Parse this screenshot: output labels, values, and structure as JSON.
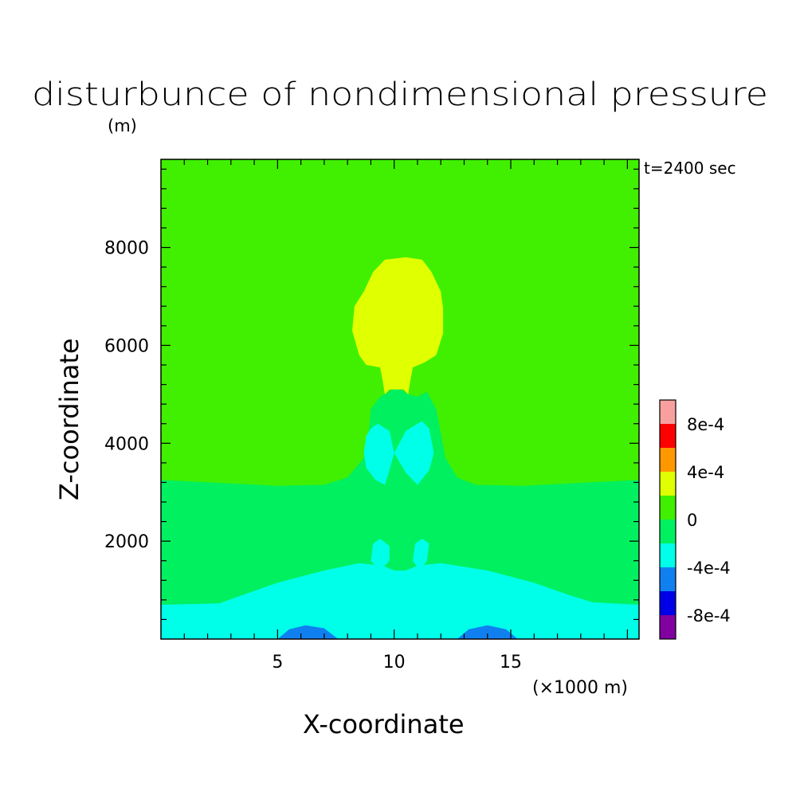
{
  "chart_data": {
    "type": "contour",
    "title": "disturbunce of nondimensional pressure",
    "unit_label": "(m)",
    "time_label": "t=2400 sec",
    "xlabel": "X-coordinate",
    "ylabel": "Z-coordinate",
    "x_unit": "(×1000 m)",
    "xlim": [
      0,
      20.5
    ],
    "ylim": [
      0,
      9800
    ],
    "xticks": [
      5,
      10,
      15
    ],
    "xtick_labels": [
      "5",
      "10",
      "15"
    ],
    "yticks": [
      2000,
      4000,
      6000,
      8000
    ],
    "ytick_labels": [
      "2000",
      "4000",
      "6000",
      "8000"
    ],
    "background_level": "0 to 2e-4",
    "levels": [
      {
        "range": [
          -0.001,
          -0.0008
        ],
        "color": "#8000a0"
      },
      {
        "range": [
          -0.0008,
          -0.0006
        ],
        "color": "#0000e8"
      },
      {
        "range": [
          -0.0006,
          -0.0004
        ],
        "color": "#1080f0"
      },
      {
        "range": [
          -0.0004,
          -0.0002
        ],
        "color": "#00ffe8"
      },
      {
        "range": [
          -0.0002,
          0
        ],
        "color": "#00f060"
      },
      {
        "range": [
          0,
          0.0002
        ],
        "color": "#40f000"
      },
      {
        "range": [
          0.0002,
          0.0004
        ],
        "color": "#e0ff00"
      },
      {
        "range": [
          0.0004,
          0.0006
        ],
        "color": "#ff9800"
      },
      {
        "range": [
          0.0006,
          0.0008
        ],
        "color": "#ff0000"
      },
      {
        "range": [
          0.0008,
          0.001
        ],
        "color": "#f8a0a0"
      }
    ],
    "colorbar_labels": [
      "-8e-4",
      "-4e-4",
      "0",
      "4e-4",
      "8e-4"
    ],
    "colorbar_label_values": [
      -0.0008,
      -0.0004,
      0,
      0.0004,
      0.0008
    ],
    "regions": [
      {
        "name": "lower-layer",
        "color": "#00f060",
        "points": [
          [
            0,
            0
          ],
          [
            0,
            3250
          ],
          [
            3,
            3180
          ],
          [
            5,
            3130
          ],
          [
            7,
            3150
          ],
          [
            8,
            3300
          ],
          [
            8.7,
            3700
          ],
          [
            8.9,
            4200
          ],
          [
            9,
            4700
          ],
          [
            9.4,
            4950
          ],
          [
            9.6,
            5000
          ],
          [
            9.9,
            5100
          ],
          [
            10.3,
            5100
          ],
          [
            10.6,
            5000
          ],
          [
            11,
            4950
          ],
          [
            11.4,
            5050
          ],
          [
            11.8,
            4700
          ],
          [
            12,
            4200
          ],
          [
            12.2,
            3700
          ],
          [
            12.7,
            3300
          ],
          [
            13.5,
            3150
          ],
          [
            15.5,
            3130
          ],
          [
            17.5,
            3180
          ],
          [
            20.5,
            3250
          ],
          [
            20.5,
            0
          ]
        ]
      },
      {
        "name": "lobe-left",
        "color": "#00ffe8",
        "points": [
          [
            8.7,
            3800
          ],
          [
            8.8,
            4150
          ],
          [
            9,
            4300
          ],
          [
            9.3,
            4400
          ],
          [
            9.8,
            4250
          ],
          [
            10,
            3800
          ],
          [
            9.8,
            3450
          ],
          [
            9.6,
            3150
          ],
          [
            9.2,
            3250
          ],
          [
            8.8,
            3500
          ]
        ]
      },
      {
        "name": "lobe-right",
        "color": "#00ffe8",
        "points": [
          [
            10,
            3800
          ],
          [
            10.5,
            4250
          ],
          [
            11,
            4400
          ],
          [
            11.2,
            4450
          ],
          [
            11.5,
            4300
          ],
          [
            11.7,
            3800
          ],
          [
            11.5,
            3450
          ],
          [
            11,
            3150
          ],
          [
            10.5,
            3400
          ]
        ]
      },
      {
        "name": "blob-left",
        "color": "#00ffe8",
        "points": [
          [
            9,
            1600
          ],
          [
            9.1,
            1950
          ],
          [
            9.4,
            2050
          ],
          [
            9.8,
            1900
          ],
          [
            9.8,
            1600
          ],
          [
            9.4,
            1400
          ]
        ]
      },
      {
        "name": "blob-right",
        "color": "#00ffe8",
        "points": [
          [
            10.8,
            1600
          ],
          [
            10.9,
            1950
          ],
          [
            11.2,
            2050
          ],
          [
            11.5,
            1950
          ],
          [
            11.4,
            1600
          ],
          [
            11.1,
            1400
          ]
        ]
      },
      {
        "name": "bottom-band",
        "color": "#00ffe8",
        "points": [
          [
            0,
            0
          ],
          [
            0,
            700
          ],
          [
            2.5,
            730
          ],
          [
            3.5,
            900
          ],
          [
            5,
            1150
          ],
          [
            7,
            1400
          ],
          [
            8.5,
            1550
          ],
          [
            9.5,
            1500
          ],
          [
            10,
            1400
          ],
          [
            10.5,
            1400
          ],
          [
            11,
            1500
          ],
          [
            12,
            1550
          ],
          [
            14,
            1400
          ],
          [
            16,
            1150
          ],
          [
            17.5,
            900
          ],
          [
            18.5,
            750
          ],
          [
            20.5,
            700
          ],
          [
            20.5,
            0
          ]
        ]
      },
      {
        "name": "dip-left",
        "color": "#1080f0",
        "points": [
          [
            5,
            0
          ],
          [
            5.5,
            200
          ],
          [
            6.2,
            280
          ],
          [
            7,
            220
          ],
          [
            7.6,
            0
          ]
        ]
      },
      {
        "name": "dip-right",
        "color": "#1080f0",
        "points": [
          [
            12.7,
            0
          ],
          [
            13.2,
            200
          ],
          [
            14,
            280
          ],
          [
            14.8,
            200
          ],
          [
            15.3,
            0
          ]
        ]
      },
      {
        "name": "positive-cap",
        "color": "#e0ff00",
        "points": [
          [
            9.6,
            5000
          ],
          [
            9.8,
            5100
          ],
          [
            10.4,
            5100
          ],
          [
            10.6,
            5000
          ],
          [
            10.7,
            5300
          ],
          [
            10.8,
            5550
          ],
          [
            11.3,
            5650
          ],
          [
            11.8,
            5800
          ],
          [
            12.1,
            6250
          ],
          [
            12.1,
            6750
          ],
          [
            12,
            7100
          ],
          [
            11.6,
            7500
          ],
          [
            11.2,
            7750
          ],
          [
            10.5,
            7800
          ],
          [
            9.6,
            7750
          ],
          [
            9.1,
            7500
          ],
          [
            8.7,
            7100
          ],
          [
            8.3,
            6800
          ],
          [
            8.2,
            6300
          ],
          [
            8.5,
            5800
          ],
          [
            8.8,
            5600
          ],
          [
            9.4,
            5550
          ],
          [
            9.5,
            5300
          ]
        ]
      }
    ]
  }
}
